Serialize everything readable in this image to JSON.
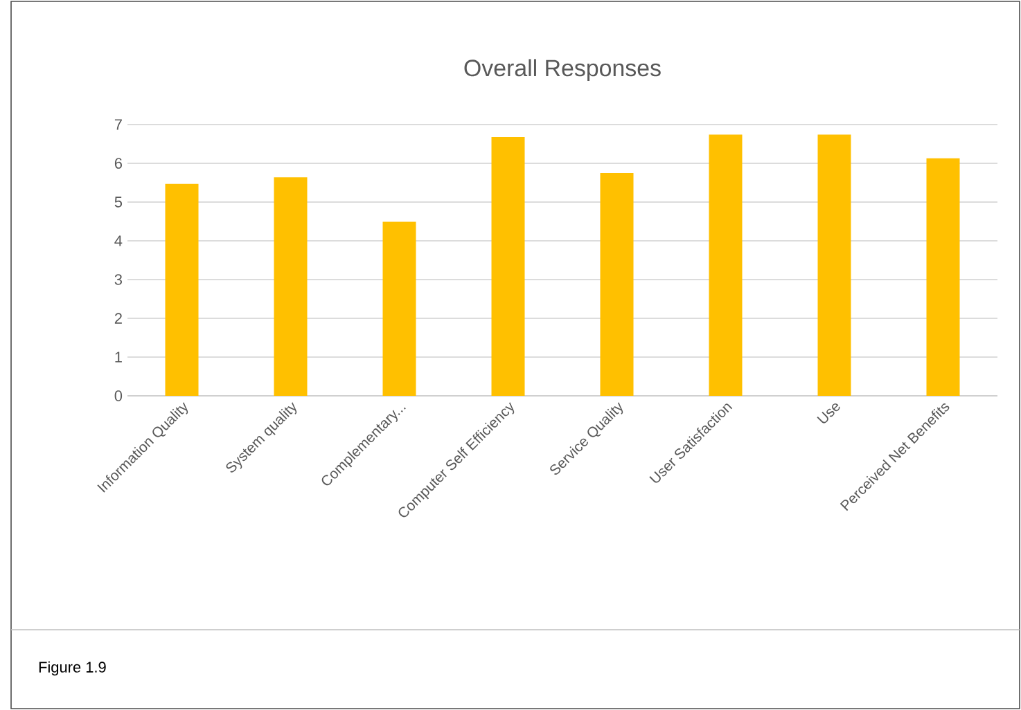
{
  "chart_data": {
    "type": "bar",
    "title": "Overall Responses",
    "categories": [
      "Information Quality",
      "System quality",
      "Complementary...",
      "Computer Self Efficiency",
      "Service Quality",
      "User Satisfaction",
      "Use",
      "Perceived Net Benefits"
    ],
    "values": [
      5.47,
      5.64,
      4.49,
      6.68,
      5.75,
      6.74,
      6.74,
      6.13
    ],
    "color": "#ffc000",
    "ylim": [
      0,
      7
    ],
    "yticks": [
      0,
      1,
      2,
      3,
      4,
      5,
      6,
      7
    ],
    "grid": "y",
    "annotations": [
      "Figure 1.9"
    ]
  }
}
